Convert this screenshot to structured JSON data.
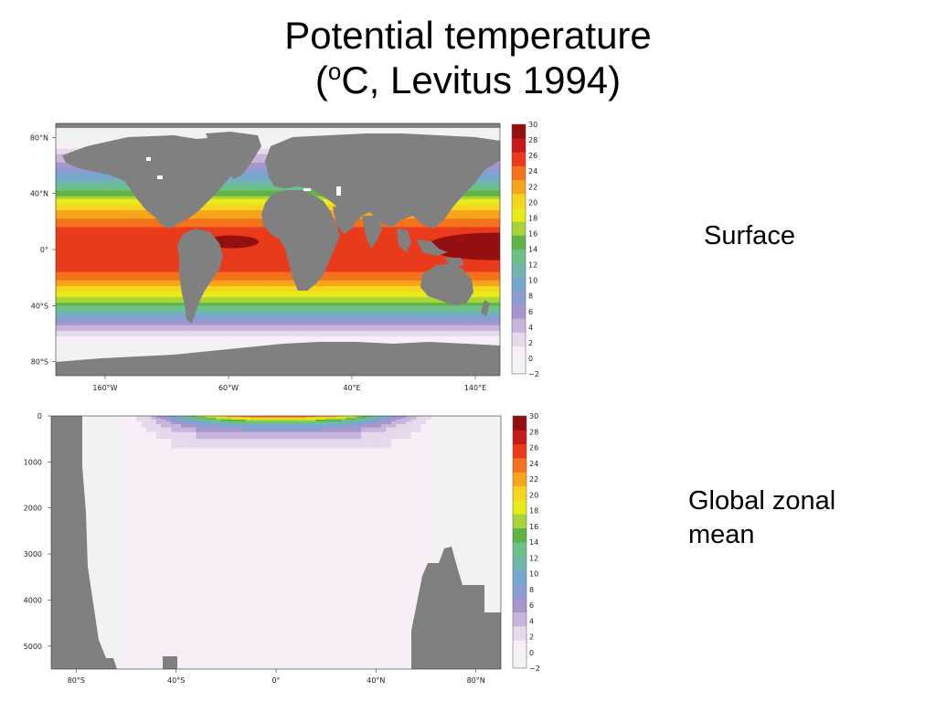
{
  "title": {
    "line1": "Potential temperature",
    "line2_open": "(",
    "line2_sup": "o",
    "line2_rest": "C, Levitus 1994)"
  },
  "captions": {
    "surface": "Surface",
    "zonal_line1": "Global zonal",
    "zonal_line2": "mean"
  },
  "colors": {
    "land": "#808080",
    "scale": [
      "#f2f2f2",
      "#f7eef7",
      "#e6d9ec",
      "#c9b5dc",
      "#a796cc",
      "#8c9dd0",
      "#76a7cf",
      "#70b5b0",
      "#6cc188",
      "#60b443",
      "#a8d43a",
      "#e9ea1a",
      "#f7d51d",
      "#f6a51a",
      "#f5721c",
      "#ea3a1c",
      "#c61a1a",
      "#940f10"
    ]
  },
  "chart_data": [
    {
      "type": "heatmap",
      "name": "surface-map",
      "x_ticks": [
        "160°W",
        "60°W",
        "40°E",
        "140°E"
      ],
      "y_ticks": [
        "80°N",
        "40°N",
        "0°",
        "40°S",
        "80°S"
      ],
      "colorbar_min": -2,
      "colorbar_max": 30,
      "colorbar_ticks": [
        "30",
        "28",
        "26",
        "24",
        "22",
        "20",
        "18",
        "16",
        "14",
        "12",
        "10",
        "8",
        "6",
        "4",
        "2",
        "0",
        "−2"
      ],
      "xlim": [
        -200,
        160
      ],
      "ylim": [
        -90,
        90
      ],
      "latitude_profile": {
        "lat": [
          90,
          80,
          70,
          60,
          50,
          40,
          30,
          20,
          10,
          0,
          -10,
          -20,
          -30,
          -40,
          -50,
          -60,
          -70,
          -80,
          -90
        ],
        "temp_c": [
          -1.8,
          -1.6,
          2.5,
          6.5,
          11,
          16,
          21.5,
          25.5,
          27.5,
          28,
          27.5,
          25.5,
          21,
          15.5,
          8.5,
          2.5,
          -1.5,
          -1.8,
          -1.8
        ]
      }
    },
    {
      "type": "heatmap",
      "name": "zonal-mean-section",
      "x_ticks": [
        "80°S",
        "40°S",
        "0°",
        "40°N",
        "80°N"
      ],
      "y_ticks": [
        "0",
        "1000",
        "2000",
        "3000",
        "4000",
        "5000"
      ],
      "colorbar_min": -2,
      "colorbar_max": 30,
      "colorbar_ticks": [
        "30",
        "28",
        "26",
        "24",
        "22",
        "20",
        "18",
        "16",
        "14",
        "12",
        "10",
        "8",
        "6",
        "4",
        "2",
        "0",
        "−2"
      ],
      "xlim": [
        -90,
        90
      ],
      "ylim": [
        5500,
        0
      ],
      "ylabel": "",
      "surface_profile": {
        "lat": [
          -60,
          -50,
          -40,
          -30,
          -20,
          -10,
          0,
          10,
          20,
          30,
          40,
          50,
          60
        ],
        "temp_c": [
          0.5,
          4,
          12,
          19,
          24,
          26.5,
          27,
          27,
          25,
          21,
          14,
          7,
          2
        ]
      }
    }
  ]
}
